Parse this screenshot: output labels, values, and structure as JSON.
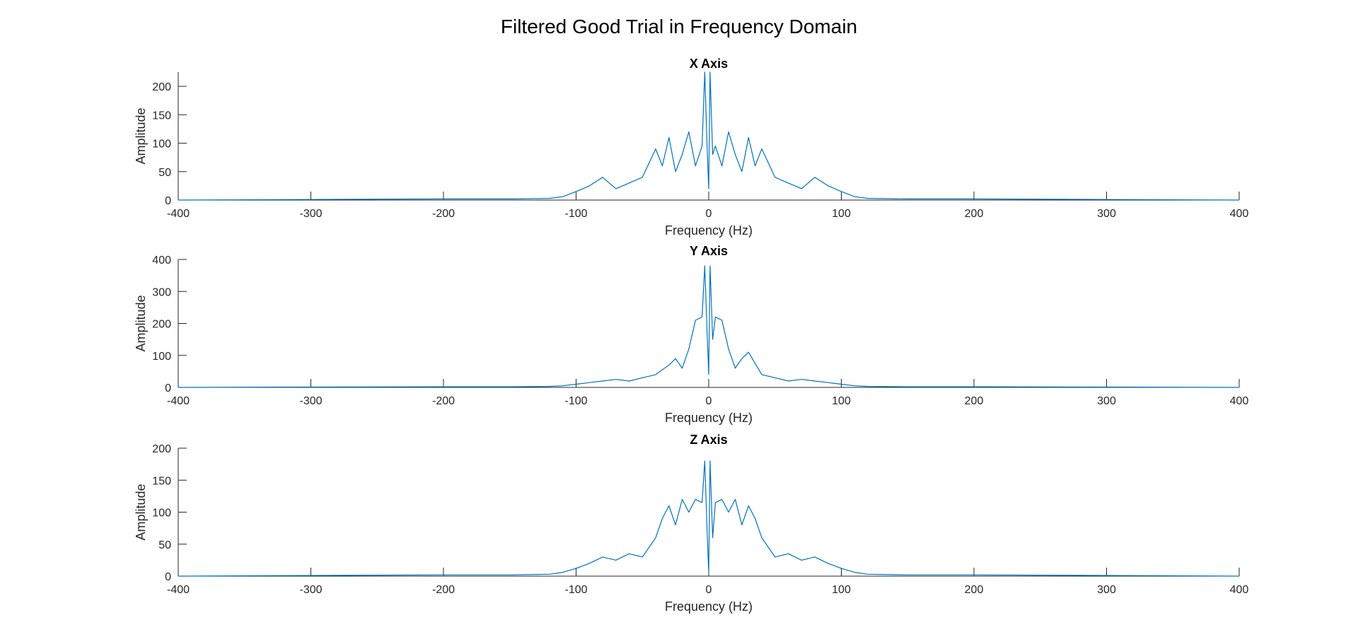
{
  "figure": {
    "title": "Filtered Good Trial in Frequency Domain"
  },
  "colors": {
    "line": "#0072BD",
    "axis": "#262626"
  },
  "chart_data": [
    {
      "type": "line",
      "title": "X Axis",
      "xlabel": "Frequency (Hz)",
      "ylabel": "Amplitude",
      "xlim": [
        -400,
        400
      ],
      "ylim": [
        0,
        225
      ],
      "xticks": [
        -400,
        -300,
        -200,
        -100,
        0,
        100,
        200,
        300,
        400
      ],
      "yticks": [
        0,
        50,
        100,
        150,
        200
      ],
      "grid": false,
      "series": [
        {
          "x": [
            -400,
            -300,
            -200,
            -150,
            -120,
            -110,
            -100,
            -90,
            -80,
            -75,
            -70,
            -60,
            -50,
            -40,
            -35,
            -30,
            -25,
            -20,
            -15,
            -10,
            -5,
            -3,
            -1,
            0,
            1,
            3,
            5,
            10,
            15,
            20,
            25,
            30,
            35,
            40,
            50,
            60,
            70,
            75,
            80,
            90,
            100,
            110,
            120,
            150,
            200,
            300,
            400
          ],
          "values": [
            0,
            1,
            2,
            2,
            3,
            6,
            15,
            25,
            40,
            30,
            20,
            30,
            40,
            90,
            60,
            110,
            50,
            80,
            120,
            60,
            95,
            225,
            80,
            20,
            225,
            80,
            95,
            60,
            120,
            80,
            50,
            110,
            60,
            90,
            40,
            30,
            20,
            30,
            40,
            25,
            15,
            6,
            3,
            2,
            2,
            1,
            0
          ]
        }
      ]
    },
    {
      "type": "line",
      "title": "Y Axis",
      "xlabel": "Frequency (Hz)",
      "ylabel": "Amplitude",
      "xlim": [
        -400,
        400
      ],
      "ylim": [
        0,
        400
      ],
      "xticks": [
        -400,
        -300,
        -200,
        -100,
        0,
        100,
        200,
        300,
        400
      ],
      "yticks": [
        0,
        100,
        200,
        300,
        400
      ],
      "grid": false,
      "series": [
        {
          "x": [
            -400,
            -300,
            -200,
            -150,
            -120,
            -110,
            -100,
            -90,
            -80,
            -70,
            -60,
            -50,
            -40,
            -30,
            -25,
            -20,
            -15,
            -10,
            -5,
            -3,
            -1,
            0,
            1,
            3,
            5,
            10,
            15,
            20,
            25,
            30,
            40,
            50,
            60,
            70,
            80,
            90,
            100,
            110,
            120,
            150,
            200,
            300,
            400
          ],
          "values": [
            0,
            1,
            2,
            2,
            3,
            5,
            10,
            15,
            20,
            25,
            20,
            30,
            40,
            70,
            90,
            60,
            120,
            210,
            220,
            380,
            150,
            40,
            380,
            150,
            220,
            210,
            120,
            60,
            90,
            110,
            40,
            30,
            20,
            25,
            20,
            15,
            10,
            5,
            3,
            2,
            2,
            1,
            0
          ]
        }
      ]
    },
    {
      "type": "line",
      "title": "Z Axis",
      "xlabel": "Frequency (Hz)",
      "ylabel": "Amplitude",
      "xlim": [
        -400,
        400
      ],
      "ylim": [
        0,
        200
      ],
      "xticks": [
        -400,
        -300,
        -200,
        -100,
        0,
        100,
        200,
        300,
        400
      ],
      "yticks": [
        0,
        50,
        100,
        150,
        200
      ],
      "grid": false,
      "series": [
        {
          "x": [
            -400,
            -300,
            -200,
            -150,
            -120,
            -110,
            -100,
            -90,
            -80,
            -70,
            -60,
            -50,
            -40,
            -35,
            -30,
            -25,
            -20,
            -15,
            -10,
            -5,
            -3,
            -1,
            0,
            1,
            3,
            5,
            10,
            15,
            20,
            25,
            30,
            35,
            40,
            50,
            60,
            70,
            80,
            90,
            100,
            110,
            120,
            150,
            200,
            300,
            400
          ],
          "values": [
            0,
            1,
            2,
            2,
            3,
            6,
            12,
            20,
            30,
            25,
            35,
            30,
            60,
            90,
            110,
            80,
            120,
            100,
            120,
            115,
            180,
            60,
            5,
            180,
            60,
            115,
            120,
            100,
            120,
            80,
            110,
            90,
            60,
            30,
            35,
            25,
            30,
            20,
            12,
            6,
            3,
            2,
            2,
            1,
            0
          ]
        }
      ]
    }
  ]
}
